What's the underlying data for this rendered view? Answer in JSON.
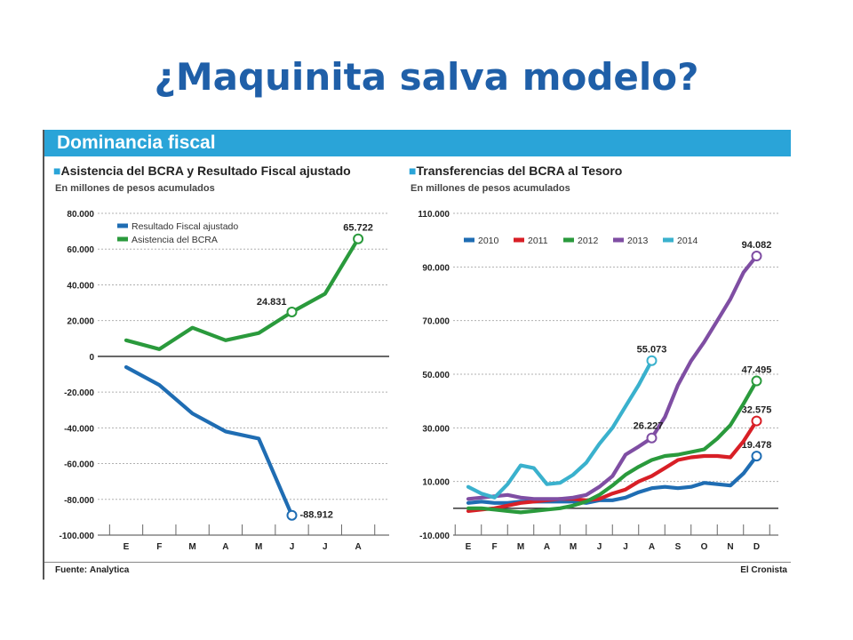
{
  "slide": {
    "title": "¿Maquinita salva modelo?"
  },
  "figure": {
    "title": "Dominancia fiscal",
    "source_label": "Fuente:",
    "source_value": "Analytica",
    "brand": "El Cronista"
  },
  "chart_data": [
    {
      "type": "line",
      "title": "Asistencia del BCRA y Resultado Fiscal ajustado",
      "subtitle": "En millones de pesos acumulados",
      "categories": [
        "E",
        "F",
        "M",
        "A",
        "M",
        "J",
        "J",
        "A"
      ],
      "ylim": [
        -100000,
        80000
      ],
      "yticks": [
        80000,
        60000,
        40000,
        20000,
        0,
        -20000,
        -40000,
        -60000,
        -80000,
        -100000
      ],
      "ytick_labels": [
        "80.000",
        "60.000",
        "40.000",
        "20.000",
        "0",
        "-20.000",
        "-40.000",
        "-60.000",
        "-80.000",
        "-100.000"
      ],
      "grid": true,
      "legend": "top-left",
      "series": [
        {
          "name": "Resultado Fiscal ajustado",
          "color": "#1f6db3",
          "values": [
            -6000,
            -16000,
            -32000,
            -42000,
            -46000,
            -88912,
            null,
            null
          ],
          "annotations": [
            {
              "index": 5,
              "label": "-88.912"
            }
          ]
        },
        {
          "name": "Asistencia del BCRA",
          "color": "#2a9a3c",
          "values": [
            9000,
            4000,
            16000,
            9000,
            13000,
            24831,
            35000,
            65722
          ],
          "annotations": [
            {
              "index": 5,
              "label": "24.831"
            },
            {
              "index": 7,
              "label": "65.722"
            }
          ]
        }
      ]
    },
    {
      "type": "line",
      "title": "Transferencias del BCRA al Tesoro",
      "subtitle": "En millones de pesos acumulados",
      "x": [
        1,
        1.5,
        2,
        2.5,
        3,
        3.5,
        4,
        4.5,
        5,
        5.5,
        6,
        6.5,
        7,
        7.5,
        8,
        8.5,
        9,
        9.5,
        10,
        10.5,
        11,
        11.5,
        12
      ],
      "categories": [
        "E",
        "F",
        "M",
        "A",
        "M",
        "J",
        "J",
        "A",
        "S",
        "O",
        "N",
        "D"
      ],
      "ylim": [
        -10000,
        110000
      ],
      "yticks": [
        110000,
        90000,
        70000,
        50000,
        30000,
        10000,
        -10000
      ],
      "ytick_labels": [
        "110.000",
        "90.000",
        "70.000",
        "50.000",
        "30.000",
        "10.000",
        "-10.000"
      ],
      "grid": true,
      "legend": "top-left",
      "series": [
        {
          "name": "2010",
          "color": "#1f6db3",
          "values": [
            2000,
            2500,
            2000,
            2000,
            2500,
            2500,
            2500,
            2500,
            2500,
            2000,
            3000,
            3000,
            4000,
            6000,
            7500,
            8000,
            7500,
            8000,
            9500,
            9000,
            8500,
            13000,
            19478
          ],
          "annotations": [
            {
              "index": 22,
              "label": "19.478"
            }
          ]
        },
        {
          "name": "2011",
          "color": "#d81f26",
          "values": [
            -1000,
            -500,
            0,
            1000,
            2000,
            2500,
            3000,
            3500,
            3500,
            3000,
            3500,
            5500,
            7000,
            10000,
            12000,
            15000,
            18000,
            19000,
            19500,
            19500,
            19000,
            25000,
            32575
          ],
          "annotations": [
            {
              "index": 22,
              "label": "32.575"
            }
          ]
        },
        {
          "name": "2012",
          "color": "#2a9a3c",
          "values": [
            0,
            0,
            -500,
            -1000,
            -1500,
            -1000,
            -500,
            0,
            1000,
            2500,
            5000,
            8500,
            12500,
            15500,
            18000,
            19500,
            20000,
            21000,
            22000,
            26000,
            31000,
            39000,
            47495
          ],
          "annotations": [
            {
              "index": 22,
              "label": "47.495"
            }
          ]
        },
        {
          "name": "2013",
          "color": "#7f4ea3",
          "values": [
            3500,
            4000,
            4500,
            5000,
            4000,
            3500,
            3500,
            3500,
            4000,
            5000,
            8000,
            12000,
            20000,
            23000,
            26227,
            34000,
            46000,
            55000,
            62000,
            70000,
            78000,
            88000,
            94082
          ],
          "annotations": [
            {
              "index": 14,
              "label": "26.227"
            },
            {
              "index": 22,
              "label": "94.082"
            }
          ]
        },
        {
          "name": "2014",
          "color": "#3ab1cd",
          "values": [
            8000,
            5500,
            4000,
            9000,
            16000,
            15000,
            9000,
            9500,
            12500,
            17000,
            24000,
            30000,
            38000,
            46000,
            55073,
            null,
            null,
            null,
            null,
            null,
            null,
            null,
            null
          ],
          "annotations": [
            {
              "index": 14,
              "label": "55.073"
            }
          ]
        }
      ]
    }
  ]
}
